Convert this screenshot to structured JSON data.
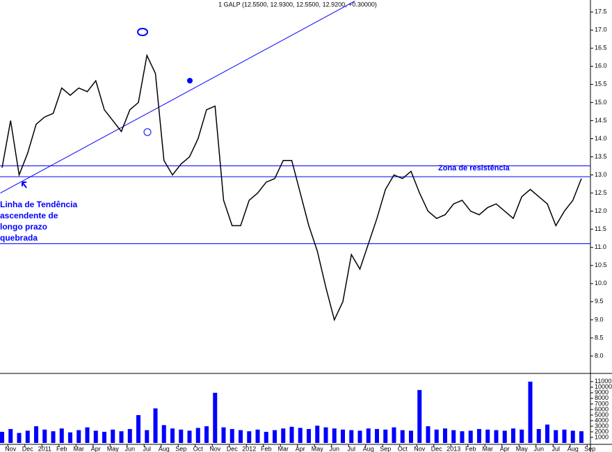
{
  "chart_data": [
    {
      "type": "line",
      "title": "1 GALP (12.5500, 12.9300, 12.5500, 12.9200, +0.30000)",
      "categories": [
        null,
        "Nov",
        null,
        "Dec",
        null,
        "2011",
        null,
        "Feb",
        null,
        "Mar",
        null,
        "Apr",
        null,
        "May",
        null,
        "Jun",
        null,
        "Jul",
        null,
        "Aug",
        null,
        "Sep",
        null,
        "Oct",
        null,
        "Nov",
        null,
        "Dec",
        null,
        "2012",
        null,
        "Feb",
        null,
        "Mar",
        null,
        "Apr",
        null,
        "May",
        null,
        "Jun",
        null,
        "Jul",
        null,
        "Aug",
        null,
        "Sep",
        null,
        "Oct",
        null,
        "Nov",
        null,
        "Dec",
        null,
        "2013",
        null,
        "Feb",
        null,
        "Mar",
        null,
        "Apr",
        null,
        "May",
        null,
        "Jun",
        null,
        "Jul",
        null,
        "Aug",
        null,
        "Sep"
      ],
      "values": [
        13.2,
        14.5,
        13.0,
        13.6,
        14.4,
        14.6,
        14.7,
        15.4,
        15.2,
        15.4,
        15.3,
        15.6,
        14.8,
        14.5,
        14.2,
        14.8,
        15.0,
        16.3,
        15.8,
        13.4,
        13.0,
        13.3,
        13.5,
        14.0,
        14.8,
        14.9,
        12.3,
        11.6,
        11.6,
        12.3,
        12.5,
        12.8,
        12.9,
        13.4,
        13.4,
        12.5,
        11.6,
        10.9,
        9.9,
        9.0,
        9.5,
        10.8,
        10.4,
        11.1,
        11.8,
        12.6,
        13.0,
        12.9,
        13.1,
        12.5,
        12.0,
        11.8,
        11.9,
        12.2,
        12.3,
        12.0,
        11.9,
        12.1,
        12.2,
        12.0,
        11.8,
        12.4,
        12.6,
        12.4,
        12.2,
        11.6,
        12.0,
        12.3,
        12.9,
        null
      ],
      "color": "#000000",
      "line_color": "#0000ff",
      "ylim": [
        7.52,
        17.83
      ],
      "yticks": [
        {
          "value": 8,
          "label": "8.0"
        },
        8.5,
        {
          "value": 9,
          "label": "9.0"
        },
        9.5,
        {
          "value": 10,
          "label": "10.0"
        },
        10.5,
        {
          "value": 11,
          "label": "11.0"
        },
        11.5,
        {
          "value": 12,
          "label": "12.0"
        },
        12.5,
        {
          "value": 13,
          "label": "13.0"
        },
        13.5,
        {
          "value": 14,
          "label": "14.0"
        },
        14.5,
        {
          "value": 15,
          "label": "15.0"
        },
        15.5,
        {
          "value": 16,
          "label": "16.0"
        },
        16.5,
        {
          "value": 17,
          "label": "17.0"
        },
        17.5
      ],
      "hlines": [
        13.25,
        12.95,
        11.1
      ],
      "trendline": {
        "start": [
          -0.2,
          12.5
        ],
        "end": [
          41.4,
          17.8
        ]
      },
      "annotations": [
        "Zona de resistência",
        "Linha de Tendência",
        "ascendente de",
        "longo prazo",
        "quebrada"
      ]
    },
    {
      "type": "bar",
      "values": [
        2000,
        2500,
        1800,
        2200,
        3000,
        2400,
        2100,
        2600,
        1900,
        2300,
        2800,
        2200,
        2000,
        2400,
        2100,
        2500,
        5000,
        2300,
        6200,
        3200,
        2600,
        2400,
        2200,
        2700,
        3000,
        9000,
        2800,
        2500,
        2300,
        2100,
        2400,
        2000,
        2300,
        2600,
        2900,
        2700,
        2500,
        3100,
        2800,
        2600,
        2400,
        2300,
        2200,
        2600,
        2500,
        2400,
        2800,
        2300,
        2200,
        9500,
        3000,
        2400,
        2600,
        2300,
        2100,
        2200,
        2500,
        2400,
        2300,
        2200,
        2600,
        2400,
        11000,
        2500,
        3300,
        2300,
        2400,
        2200,
        2100,
        null
      ],
      "color": "#0000ff",
      "ylim": [
        0,
        12100
      ],
      "yticks": [
        1000,
        2000,
        3000,
        4000,
        5000,
        6000,
        7000,
        8000,
        9000,
        10000,
        11000
      ]
    }
  ]
}
